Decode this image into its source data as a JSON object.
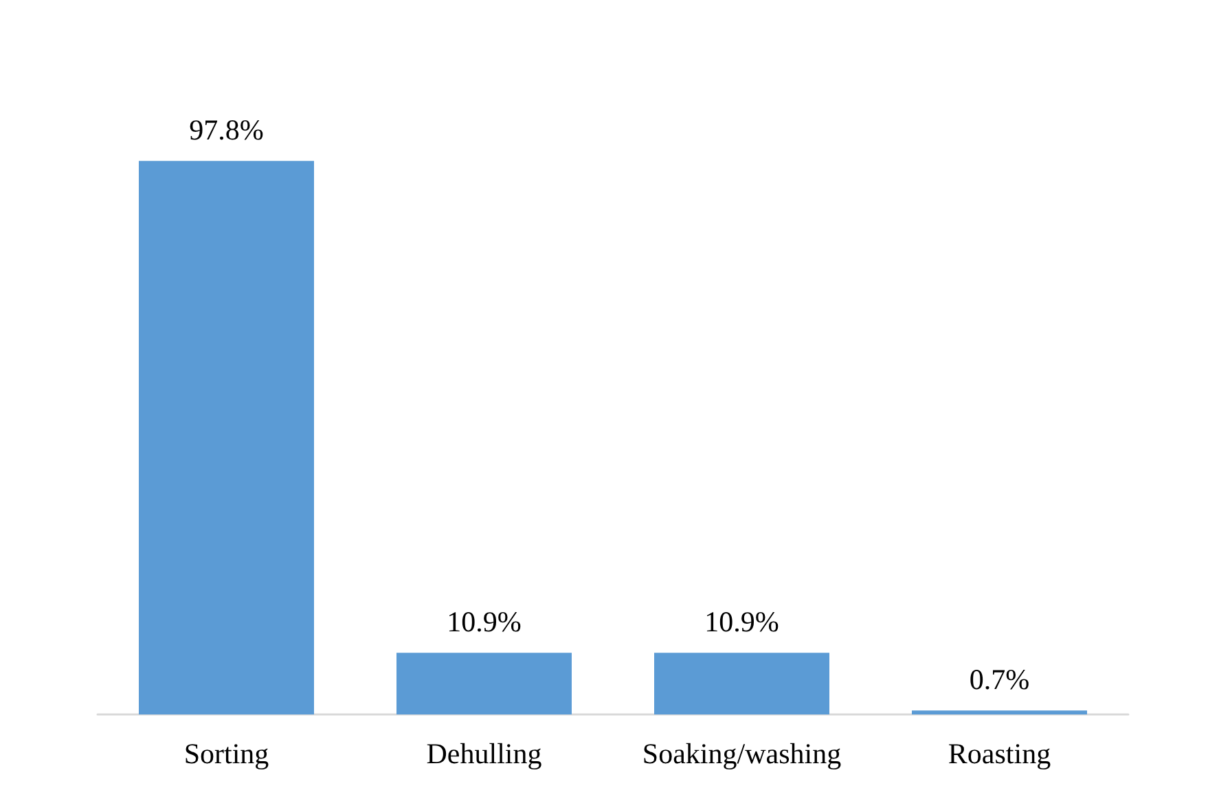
{
  "chart_data": {
    "type": "bar",
    "categories": [
      "Sorting",
      "Dehulling",
      "Soaking/washing",
      "Roasting"
    ],
    "values": [
      97.8,
      10.9,
      10.9,
      0.7
    ],
    "value_labels": [
      "97.8%",
      "10.9%",
      "10.9%",
      "0.7%"
    ],
    "color": "#5b9bd5"
  }
}
